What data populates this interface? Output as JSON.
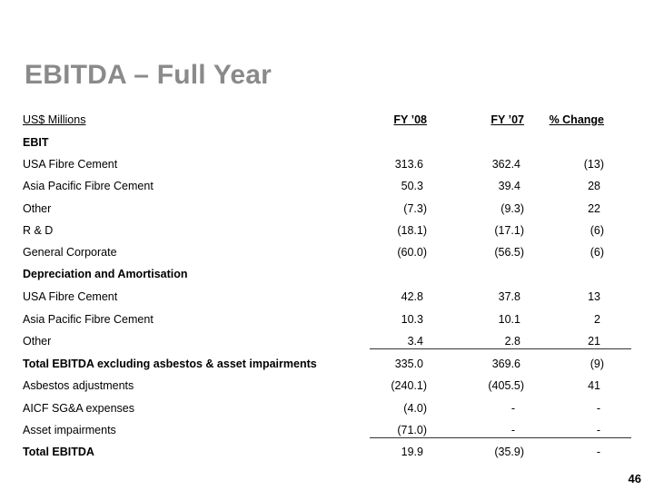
{
  "title": "EBITDA – Full Year",
  "header": {
    "units": "US$ Millions",
    "col1": "FY ’08",
    "col2": "FY ’07",
    "col3": "% Change"
  },
  "rows": [
    {
      "label": "EBIT",
      "bold": true,
      "v": [
        "",
        "",
        ""
      ]
    },
    {
      "label": "USA Fibre Cement",
      "v": [
        "313.6",
        "362.4",
        "(13)"
      ]
    },
    {
      "label": "Asia Pacific Fibre Cement",
      "v": [
        "50.3",
        "39.4",
        "28"
      ]
    },
    {
      "label": "Other",
      "v": [
        "(7.3)",
        "(9.3)",
        "22"
      ]
    },
    {
      "label": "R & D",
      "v": [
        "(18.1)",
        "(17.1)",
        "(6)"
      ]
    },
    {
      "label": "General Corporate",
      "v": [
        "(60.0)",
        "(56.5)",
        "(6)"
      ]
    },
    {
      "label": "Depreciation and Amortisation",
      "bold": true,
      "v": [
        "",
        "",
        ""
      ]
    },
    {
      "label": "USA Fibre Cement",
      "v": [
        "42.8",
        "37.8",
        "13"
      ]
    },
    {
      "label": "Asia Pacific Fibre Cement",
      "v": [
        "10.3",
        "10.1",
        "2"
      ]
    },
    {
      "label": "Other",
      "v": [
        "3.4",
        "2.8",
        "21"
      ]
    },
    {
      "label": "Total EBITDA excluding asbestos & asset impairments",
      "bold": true,
      "v": [
        "335.0",
        "369.6",
        "(9)"
      ]
    },
    {
      "label": "Asbestos adjustments",
      "v": [
        "(240.1)",
        "(405.5)",
        "41"
      ]
    },
    {
      "label": "AICF SG&A expenses",
      "v": [
        "(4.0)",
        "-",
        "-"
      ]
    },
    {
      "label": "Asset impairments",
      "v": [
        "(71.0)",
        "-",
        "-"
      ]
    },
    {
      "label": "Total EBITDA",
      "bold": true,
      "v": [
        "19.9",
        "(35.9)",
        "-"
      ]
    }
  ],
  "page_number": "46"
}
